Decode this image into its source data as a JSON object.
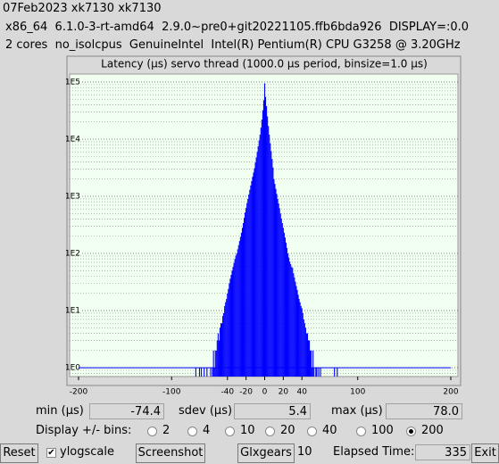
{
  "header": {
    "lines": [
      "07Feb2023 xk7130 xk7130",
      "x86_64  6.1.0-3-rt-amd64  2.9.0~pre0+git20221105.ffb6bda926  DISPLAY=:0.0",
      "2 cores  no_isolcpus  GenuineIntel  Intel(R) Pentium(R) CPU G3258 @ 3.20GHz"
    ]
  },
  "chart_data": {
    "type": "bar",
    "title": "Latency (µs) servo thread (1000.0 µs period, binsize=1.0 µs)",
    "color": "#0000ff",
    "log_scale_y": true,
    "grid": true,
    "minor_grid": true,
    "x": [
      -75,
      -74,
      -73,
      -72,
      -71,
      -70,
      -69,
      -68,
      -67,
      -66,
      -65,
      -64,
      -63,
      -62,
      -61,
      -60,
      -59,
      -58,
      -57,
      -56,
      -55,
      -54,
      -53,
      -52,
      -51,
      -50,
      -49,
      -48,
      -47,
      -46,
      -45,
      -44,
      -43,
      -42,
      -41,
      -40,
      -39,
      -38,
      -37,
      -36,
      -35,
      -34,
      -33,
      -32,
      -31,
      -30,
      -29,
      -28,
      -27,
      -26,
      -25,
      -24,
      -23,
      -22,
      -21,
      -20,
      -19,
      -18,
      -17,
      -16,
      -15,
      -14,
      -13,
      -12,
      -11,
      -10,
      -9,
      -8,
      -7,
      -6,
      -5,
      -4,
      -3,
      -2,
      -1,
      0,
      1,
      2,
      3,
      4,
      5,
      6,
      7,
      8,
      9,
      10,
      11,
      12,
      13,
      14,
      15,
      16,
      17,
      18,
      19,
      20,
      21,
      22,
      23,
      24,
      25,
      26,
      27,
      28,
      29,
      30,
      31,
      32,
      33,
      34,
      35,
      36,
      37,
      38,
      39,
      40,
      41,
      42,
      43,
      44,
      45,
      46,
      47,
      48,
      49,
      50,
      51,
      52,
      53,
      54,
      55,
      56,
      57,
      58,
      59,
      60,
      61,
      62,
      63,
      64,
      65,
      66,
      67,
      68,
      69,
      70,
      71,
      72,
      73,
      74,
      75,
      76,
      77,
      78
    ],
    "values": [
      0,
      1,
      0,
      0,
      0,
      1,
      0,
      1,
      0,
      0,
      1,
      0,
      0,
      1,
      0,
      0,
      0,
      1,
      0,
      1,
      2,
      1,
      2,
      2,
      3,
      4,
      3,
      5,
      6,
      6,
      8,
      9,
      12,
      14,
      16,
      20,
      24,
      30,
      36,
      42,
      50,
      58,
      68,
      80,
      92,
      100,
      118,
      140,
      165,
      195,
      230,
      280,
      340,
      420,
      520,
      630,
      760,
      900,
      1080,
      1300,
      1550,
      1850,
      2200,
      2600,
      3100,
      3900,
      4800,
      6000,
      7500,
      9500,
      12000,
      16000,
      22000,
      32000,
      48000,
      95000,
      55000,
      38000,
      25000,
      17000,
      12000,
      8500,
      6200,
      4500,
      3200,
      2000,
      1650,
      1350,
      1100,
      900,
      750,
      620,
      500,
      410,
      340,
      280,
      230,
      190,
      155,
      125,
      100,
      85,
      72,
      65,
      58,
      56,
      45,
      38,
      32,
      27,
      23,
      19,
      16,
      14,
      12,
      11,
      9,
      7,
      6,
      5,
      4,
      4,
      3,
      3,
      2,
      2,
      1,
      2,
      1,
      0,
      1,
      1,
      0,
      1,
      0,
      1,
      0,
      0,
      0,
      0,
      0,
      0,
      0,
      0,
      0,
      0,
      0,
      0,
      0,
      0,
      1,
      0,
      0,
      1
    ],
    "xlim": [
      -200,
      200
    ],
    "xticks": [
      -200,
      -100,
      -40,
      -20,
      0,
      20,
      40,
      100,
      200
    ],
    "ylim": [
      0.7,
      138000
    ],
    "yticks": [
      {
        "value": 1,
        "label": "1E0"
      },
      {
        "value": 10,
        "label": "1E1"
      },
      {
        "value": 100,
        "label": "1E2"
      },
      {
        "value": 1000,
        "label": "1E3"
      },
      {
        "value": 10000,
        "label": "1E4"
      },
      {
        "value": 100000,
        "label": "1E5"
      }
    ]
  },
  "stats": {
    "min_label": "min (µs)",
    "min": "-74.4",
    "sdev_label": "sdev (µs)",
    "sdev": "5.4",
    "max_label": "max (µs)",
    "max": "78.0"
  },
  "bins": {
    "label": "Display +/- bins:",
    "options": [
      2,
      4,
      10,
      20,
      40,
      100,
      200
    ],
    "selected": 200
  },
  "controls": {
    "reset": "Reset",
    "ylogscale": "ylogscale",
    "ylogscale_checked": true,
    "screenshot": "Screenshot",
    "glxgears": "Glxgears",
    "glxgears_count": "10",
    "elapsed_label": "Elapsed Time:",
    "elapsed": "335",
    "exit": "Exit"
  }
}
